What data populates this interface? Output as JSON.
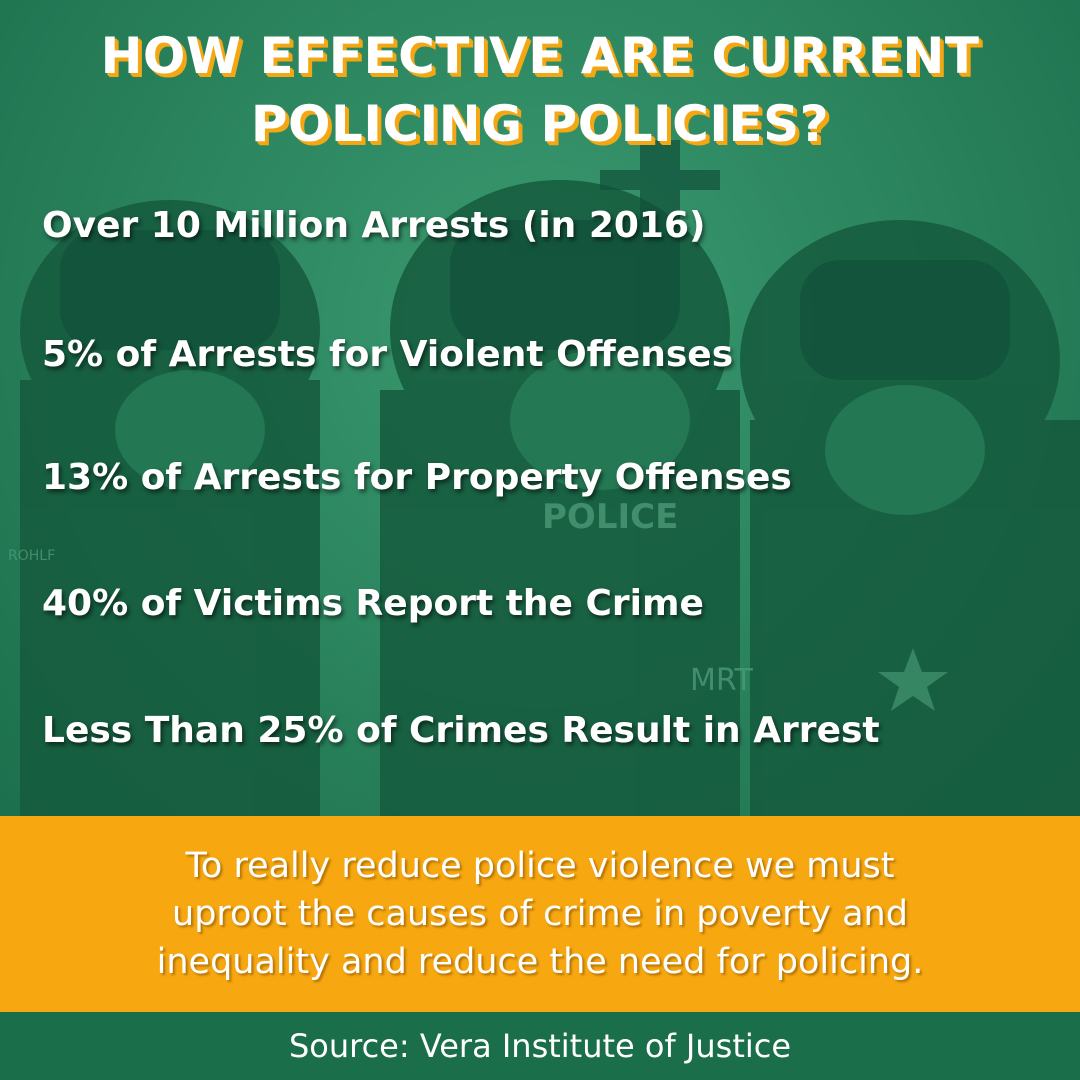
{
  "title": {
    "line1": "HOW EFFECTIVE ARE CURRENT",
    "line2": "POLICING POLICIES?"
  },
  "stats": [
    "Over 10 Million Arrests (in 2016)",
    "5% of Arrests for Violent Offenses",
    "13% of Arrests for Property Offenses",
    "40% of Victims Report the Crime",
    "Less Than 25% of Crimes Result in Arrest"
  ],
  "callout": {
    "line1": "To really reduce police violence we must",
    "line2": "uproot the causes of crime in poverty and",
    "line3": "inequality and reduce the need for policing."
  },
  "background_text": {
    "police_label": "POLICE",
    "vest_label": "MRT",
    "shoulder_label": "ROHLF"
  },
  "source": "Source: Vera Institute of Justice",
  "colors": {
    "background_green": "#1f7a55",
    "accent_orange": "#f7a70f",
    "footer_green": "#1a6e4a",
    "text": "#ffffff"
  }
}
